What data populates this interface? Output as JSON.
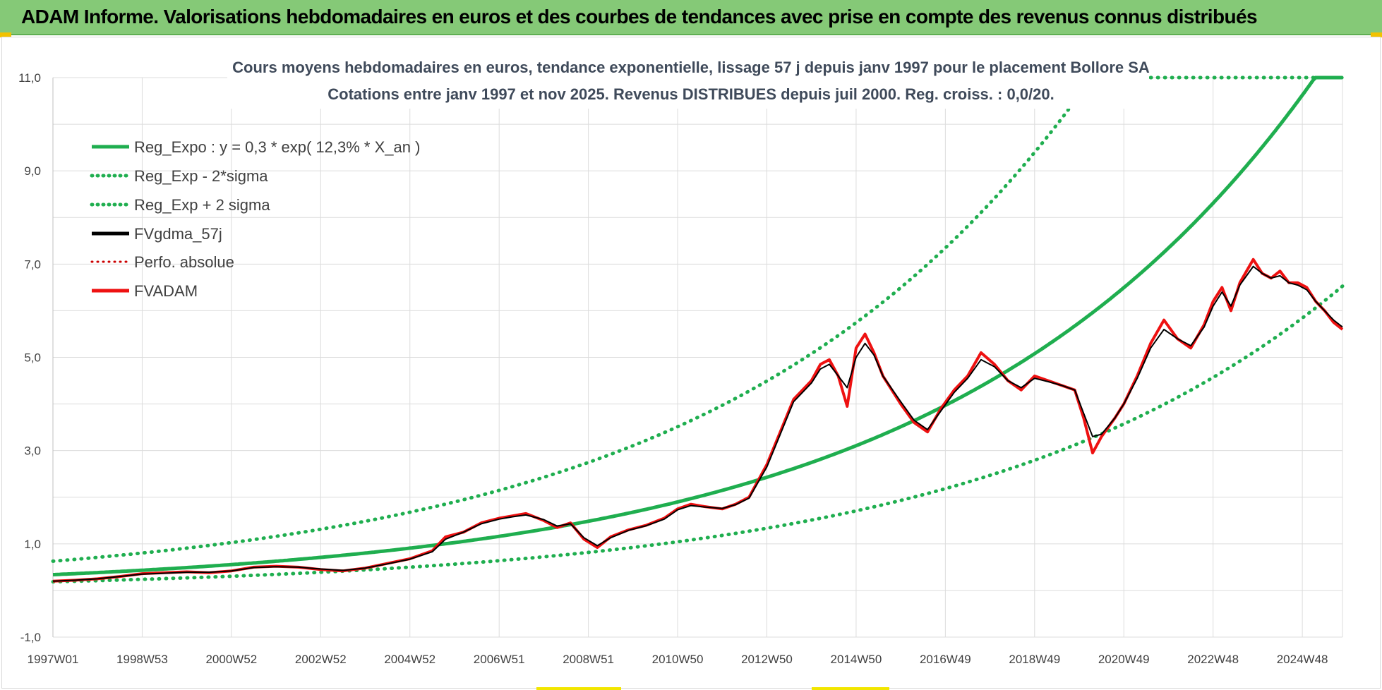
{
  "header": {
    "title": "ADAM Informe. Valorisations hebdomadaires en euros et des courbes de tendances avec prise en compte des revenus connus distribués"
  },
  "colors": {
    "banner": "#85c977",
    "reg_expo": "#1fae4f",
    "fv_gdma": "#000000",
    "fv_adam": "#ee1111",
    "perfo": "#cc0000"
  },
  "chart_data": {
    "type": "line",
    "title": [
      "Cours moyens hebdomadaires en euros, tendance exponentielle, lissage 57 j depuis janv 1997 pour le placement Bollore SA",
      "Cotations entre janv 1997 et nov 2025. Revenus DISTRIBUES depuis juil 2000. Reg. croiss. : 0,0/20."
    ],
    "xlabel": "",
    "ylabel": "",
    "x_range": [
      1997.0,
      2025.9
    ],
    "ylim": [
      -1,
      11
    ],
    "y_ticks": [
      "-1,0",
      "1,0",
      "3,0",
      "5,0",
      "7,0",
      "9,0",
      "11,0"
    ],
    "y_tick_values": [
      -1,
      1,
      3,
      5,
      7,
      9,
      11
    ],
    "x_ticks": [
      "1997W01",
      "1998W53",
      "2000W52",
      "2002W52",
      "2004W52",
      "2006W51",
      "2008W51",
      "2010W50",
      "2012W50",
      "2014W50",
      "2016W49",
      "2018W49",
      "2020W49",
      "2022W48",
      "2024W48"
    ],
    "x_tick_values": [
      1997.0,
      1999.0,
      2001.0,
      2003.0,
      2005.0,
      2007.0,
      2009.0,
      2011.0,
      2013.0,
      2015.0,
      2017.0,
      2019.0,
      2021.0,
      2023.0,
      2025.0
    ],
    "grid": true,
    "legend_position": "top-left",
    "legend": [
      {
        "label": "Reg_Expo : y = 0,3 * exp( 12,3% *  X_an )",
        "style": "solid",
        "color": "#1fae4f"
      },
      {
        "label": "Reg_Exp - 2*sigma",
        "style": "dotted",
        "color": "#1fae4f"
      },
      {
        "label": "Reg_Exp + 2 sigma",
        "style": "dotted",
        "color": "#1fae4f"
      },
      {
        "label": "FVgdma_57j",
        "style": "solid",
        "color": "#000000"
      },
      {
        "label": "Perfo. absolue",
        "style": "dotted",
        "color": "#cc0000"
      },
      {
        "label": "FVADAM",
        "style": "solid",
        "color": "#ee1111"
      }
    ],
    "trend": {
      "a": 0.3,
      "rate": 0.123,
      "x0": 1997.0,
      "minus_factor": 0.55,
      "plus_factor": 1.85,
      "cap": 11
    },
    "series": [
      {
        "name": "FVADAM",
        "x": [
          1997.0,
          1997.5,
          1998.0,
          1998.5,
          1999.0,
          1999.5,
          2000.0,
          2000.5,
          2001.0,
          2001.5,
          2002.0,
          2002.5,
          2003.0,
          2003.5,
          2004.0,
          2004.5,
          2005.0,
          2005.5,
          2005.8,
          2006.2,
          2006.6,
          2007.0,
          2007.3,
          2007.6,
          2008.0,
          2008.3,
          2008.6,
          2008.9,
          2009.2,
          2009.5,
          2009.9,
          2010.3,
          2010.7,
          2011.0,
          2011.3,
          2011.6,
          2012.0,
          2012.3,
          2012.6,
          2013.0,
          2013.3,
          2013.6,
          2014.0,
          2014.2,
          2014.4,
          2014.6,
          2014.8,
          2015.0,
          2015.2,
          2015.4,
          2015.6,
          2016.0,
          2016.3,
          2016.6,
          2016.9,
          2017.2,
          2017.5,
          2017.8,
          2018.1,
          2018.4,
          2018.7,
          2019.0,
          2019.3,
          2019.6,
          2019.9,
          2020.1,
          2020.3,
          2020.5,
          2020.8,
          2021.0,
          2021.3,
          2021.6,
          2021.9,
          2022.2,
          2022.5,
          2022.8,
          2023.0,
          2023.2,
          2023.4,
          2023.6,
          2023.9,
          2024.1,
          2024.3,
          2024.5,
          2024.7,
          2024.9,
          2025.1,
          2025.3,
          2025.5,
          2025.7,
          2025.9
        ],
        "values": [
          0.2,
          0.22,
          0.25,
          0.3,
          0.36,
          0.38,
          0.4,
          0.38,
          0.42,
          0.5,
          0.52,
          0.5,
          0.45,
          0.42,
          0.48,
          0.58,
          0.68,
          0.85,
          1.15,
          1.25,
          1.45,
          1.55,
          1.6,
          1.65,
          1.5,
          1.35,
          1.45,
          1.1,
          0.92,
          1.15,
          1.3,
          1.4,
          1.55,
          1.75,
          1.85,
          1.8,
          1.75,
          1.85,
          2.0,
          2.7,
          3.4,
          4.1,
          4.5,
          4.85,
          4.95,
          4.6,
          3.95,
          5.2,
          5.5,
          5.1,
          4.6,
          4.0,
          3.6,
          3.4,
          3.9,
          4.3,
          4.6,
          5.1,
          4.85,
          4.5,
          4.3,
          4.6,
          4.5,
          4.4,
          4.3,
          3.7,
          2.95,
          3.3,
          3.7,
          4.0,
          4.6,
          5.3,
          5.8,
          5.4,
          5.2,
          5.7,
          6.2,
          6.5,
          6.0,
          6.6,
          7.1,
          6.8,
          6.7,
          6.85,
          6.6,
          6.6,
          6.5,
          6.2,
          6.0,
          5.75,
          5.6
        ]
      },
      {
        "name": "FVgdma_57j",
        "x": [
          1997.0,
          1997.5,
          1998.0,
          1998.5,
          1999.0,
          1999.5,
          2000.0,
          2000.5,
          2001.0,
          2001.5,
          2002.0,
          2002.5,
          2003.0,
          2003.5,
          2004.0,
          2004.5,
          2005.0,
          2005.5,
          2005.8,
          2006.2,
          2006.6,
          2007.0,
          2007.3,
          2007.6,
          2008.0,
          2008.3,
          2008.6,
          2008.9,
          2009.2,
          2009.5,
          2009.9,
          2010.3,
          2010.7,
          2011.0,
          2011.3,
          2011.6,
          2012.0,
          2012.3,
          2012.6,
          2013.0,
          2013.3,
          2013.6,
          2014.0,
          2014.2,
          2014.4,
          2014.6,
          2014.8,
          2015.0,
          2015.2,
          2015.4,
          2015.6,
          2016.0,
          2016.3,
          2016.6,
          2016.9,
          2017.2,
          2017.5,
          2017.8,
          2018.1,
          2018.4,
          2018.7,
          2019.0,
          2019.3,
          2019.6,
          2019.9,
          2020.1,
          2020.3,
          2020.5,
          2020.8,
          2021.0,
          2021.3,
          2021.6,
          2021.9,
          2022.2,
          2022.5,
          2022.8,
          2023.0,
          2023.2,
          2023.4,
          2023.6,
          2023.9,
          2024.1,
          2024.3,
          2024.5,
          2024.7,
          2024.9,
          2025.1,
          2025.3,
          2025.5,
          2025.7,
          2025.9
        ],
        "values": [
          0.2,
          0.22,
          0.25,
          0.3,
          0.35,
          0.37,
          0.39,
          0.39,
          0.42,
          0.49,
          0.51,
          0.5,
          0.46,
          0.43,
          0.48,
          0.57,
          0.67,
          0.83,
          1.1,
          1.25,
          1.43,
          1.53,
          1.58,
          1.62,
          1.52,
          1.38,
          1.43,
          1.13,
          0.96,
          1.13,
          1.29,
          1.39,
          1.53,
          1.73,
          1.82,
          1.79,
          1.76,
          1.84,
          1.98,
          2.65,
          3.35,
          4.05,
          4.45,
          4.75,
          4.85,
          4.6,
          4.35,
          5.0,
          5.3,
          5.05,
          4.6,
          4.05,
          3.65,
          3.45,
          3.85,
          4.25,
          4.55,
          4.95,
          4.8,
          4.5,
          4.35,
          4.55,
          4.48,
          4.4,
          4.3,
          3.8,
          3.3,
          3.35,
          3.7,
          4.0,
          4.55,
          5.2,
          5.6,
          5.4,
          5.25,
          5.65,
          6.1,
          6.4,
          6.1,
          6.55,
          6.95,
          6.8,
          6.7,
          6.75,
          6.6,
          6.55,
          6.45,
          6.2,
          6.0,
          5.8,
          5.65
        ]
      }
    ]
  }
}
